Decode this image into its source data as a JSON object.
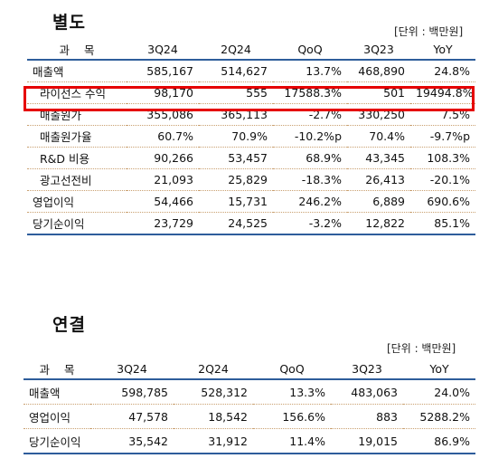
{
  "separate": {
    "title": "별도",
    "unit": "[단위 : 백만원]",
    "headers": [
      "과    목",
      "3Q24",
      "2Q24",
      "QoQ",
      "3Q23",
      "YoY"
    ],
    "rows": [
      {
        "label": "매출액",
        "values": [
          "585,167",
          "514,627",
          "13.7%",
          "468,890",
          "24.8%"
        ]
      },
      {
        "label": "라이선스 수익",
        "values": [
          "98,170",
          "555",
          "17588.3%",
          "501",
          "19494.8%"
        ]
      },
      {
        "label": "매출원가",
        "values": [
          "355,086",
          "365,113",
          "-2.7%",
          "330,250",
          "7.5%"
        ]
      },
      {
        "label": "매출원가율",
        "values": [
          "60.7%",
          "70.9%",
          "-10.2%p",
          "70.4%",
          "-9.7%p"
        ]
      },
      {
        "label": "R&D 비용",
        "values": [
          "90,266",
          "53,457",
          "68.9%",
          "43,345",
          "108.3%"
        ]
      },
      {
        "label": "광고선전비",
        "values": [
          "21,093",
          "25,829",
          "-18.3%",
          "26,413",
          "-20.1%"
        ]
      },
      {
        "label": "영업이익",
        "values": [
          "54,466",
          "15,731",
          "246.2%",
          "6,889",
          "690.6%"
        ]
      },
      {
        "label": "당기순이익",
        "values": [
          "23,729",
          "24,525",
          "-3.2%",
          "12,822",
          "85.1%"
        ]
      }
    ]
  },
  "consolidated": {
    "title": "연결",
    "unit": "[단위 : 백만원]",
    "headers": [
      "과    목",
      "3Q24",
      "2Q24",
      "QoQ",
      "3Q23",
      "YoY"
    ],
    "rows": [
      {
        "label": "매출액",
        "values": [
          "598,785",
          "528,312",
          "13.3%",
          "483,063",
          "24.0%"
        ]
      },
      {
        "label": "영업이익",
        "values": [
          "47,578",
          "18,542",
          "156.6%",
          "883",
          "5288.2%"
        ]
      },
      {
        "label": "당기순이익",
        "values": [
          "35,542",
          "31,912",
          "11.4%",
          "19,015",
          "86.9%"
        ]
      }
    ]
  },
  "colors": {
    "highlight": "#e60000",
    "header_rule": "#2e5d9b",
    "row_rule": "#c9a070"
  }
}
